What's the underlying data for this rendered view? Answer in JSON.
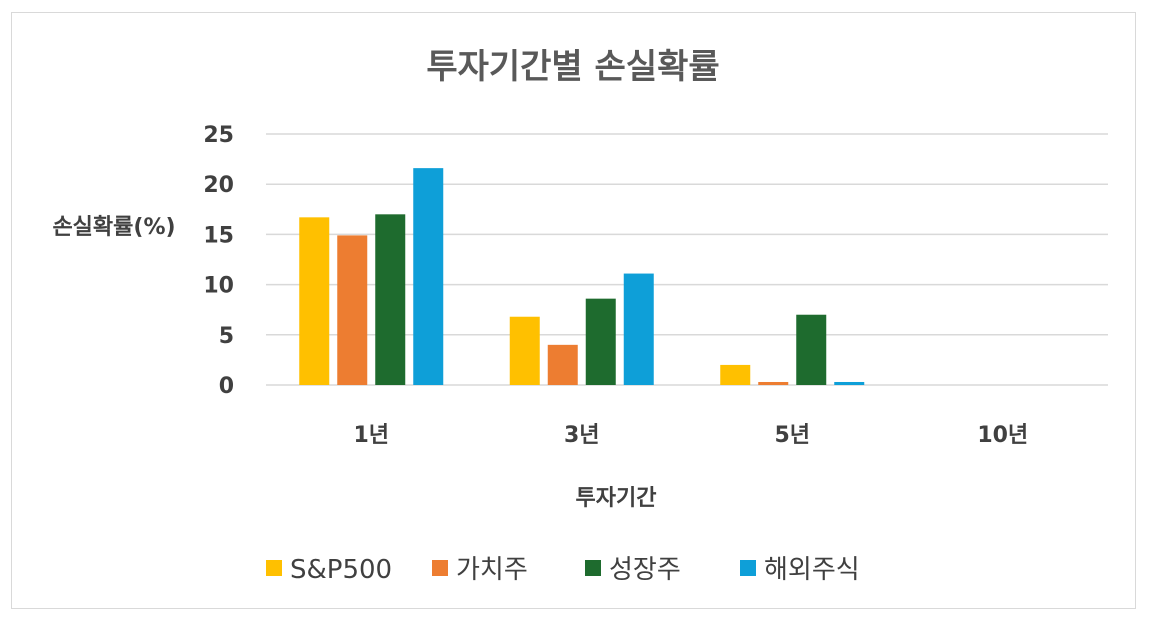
{
  "chart_data": {
    "type": "bar",
    "title": "투자기간별 손실확률",
    "xlabel": "투자기간",
    "ylabel": "손실확률(%)",
    "categories": [
      "1년",
      "3년",
      "5년",
      "10년"
    ],
    "ylim": [
      0,
      25
    ],
    "yticks": [
      "0",
      "5",
      "10",
      "15",
      "20",
      "25"
    ],
    "grid": true,
    "legend_position": "bottom",
    "series": [
      {
        "name": "S&P500",
        "color": "#FFC000",
        "values": [
          16.7,
          6.8,
          2.0,
          0
        ]
      },
      {
        "name": "가치주",
        "color": "#ED7D31",
        "values": [
          14.9,
          4.0,
          0.3,
          0
        ]
      },
      {
        "name": "성장주",
        "color": "#1E6B2E",
        "values": [
          17.0,
          8.6,
          7.0,
          0
        ]
      },
      {
        "name": "해외주식",
        "color": "#0E9FD8",
        "values": [
          21.6,
          11.1,
          0.3,
          0
        ]
      }
    ]
  }
}
